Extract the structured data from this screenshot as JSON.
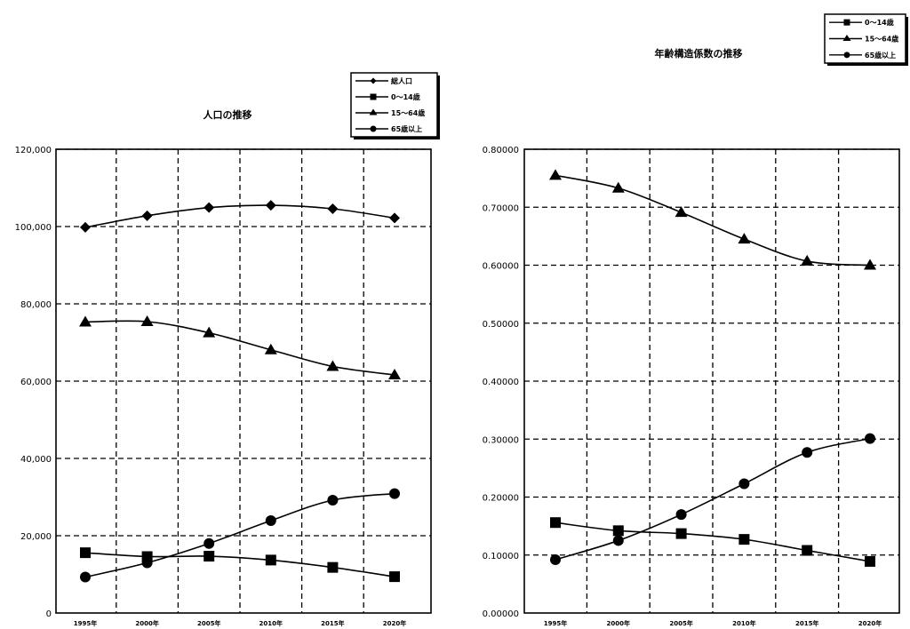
{
  "chart_data": [
    {
      "type": "line",
      "title": "人口の推移",
      "categories": [
        "1995年",
        "2000年",
        "2005年",
        "2010年",
        "2015年",
        "2020年"
      ],
      "y_tick_labels": [
        "0",
        "20,000",
        "40,000",
        "60,000",
        "80,000",
        "100,000",
        "120,000"
      ],
      "ylim": [
        0,
        120000
      ],
      "grid": true,
      "legend_placement": "top-right",
      "series": [
        {
          "name": "総人口",
          "marker": "diamond",
          "values": [
            99800,
            102800,
            104900,
            105500,
            104600,
            102200
          ]
        },
        {
          "name": "0～14歳",
          "marker": "square",
          "values": [
            15600,
            14600,
            14700,
            13700,
            11800,
            9400
          ]
        },
        {
          "name": "15～64歳",
          "marker": "triangle",
          "values": [
            75300,
            75400,
            72500,
            68100,
            63800,
            61600
          ]
        },
        {
          "name": "65歳以上",
          "marker": "circle",
          "values": [
            9300,
            13000,
            18000,
            23900,
            29200,
            30900
          ]
        }
      ]
    },
    {
      "type": "line",
      "title": "年齢構造係数の推移",
      "categories": [
        "1995年",
        "2000年",
        "2005年",
        "2010年",
        "2015年",
        "2020年"
      ],
      "y_tick_labels": [
        "0.00000",
        "0.10000",
        "0.20000",
        "0.30000",
        "0.40000",
        "0.50000",
        "0.60000",
        "0.70000",
        "0.80000"
      ],
      "ylim": [
        0,
        0.8
      ],
      "grid": true,
      "legend_placement": "top-right",
      "series": [
        {
          "name": "0～14歳",
          "marker": "square",
          "values": [
            0.156,
            0.142,
            0.137,
            0.127,
            0.108,
            0.089
          ]
        },
        {
          "name": "15～64歳",
          "marker": "triangle",
          "values": [
            0.755,
            0.733,
            0.691,
            0.645,
            0.607,
            0.6
          ]
        },
        {
          "name": "65歳以上",
          "marker": "circle",
          "values": [
            0.092,
            0.125,
            0.17,
            0.223,
            0.277,
            0.301
          ]
        }
      ]
    }
  ]
}
